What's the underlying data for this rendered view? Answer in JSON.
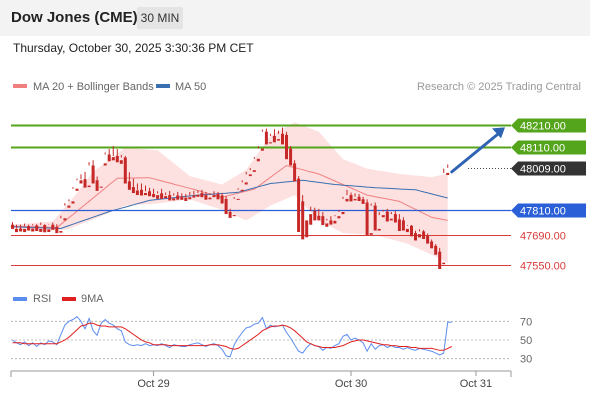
{
  "header": {
    "title": "Dow Jones (CME)",
    "timeframe": "30 MIN"
  },
  "timestamp": "Thursday, October 30, 2025 3:30:36 PM CET",
  "legend": {
    "ma20": "MA 20 + Bollinger Bands",
    "ma50": "MA 50"
  },
  "copyright": "Research © 2025 Trading Central",
  "colors": {
    "candle_up": "#2e7d32",
    "candle_down": "#c62828",
    "ma20": "#f08080",
    "ma50": "#3a6fb0",
    "bollinger_fill": "#fde0e0",
    "resistance": "#55a51c",
    "pivot": "#2a5fd8",
    "support": "#d93a3a",
    "rsi": "#5b8def",
    "rsi_ma": "#e02020"
  },
  "chart_data": {
    "type": "candlestick",
    "ylim": [
      47530,
      48245
    ],
    "x_ticks": [
      "Oct 29",
      "Oct 30",
      "Oct 31"
    ],
    "x_tick_index": [
      35,
      84,
      115
    ],
    "candles": [
      [
        47740,
        47752,
        47725,
        47720
      ],
      [
        47720,
        47740,
        47722,
        47705
      ],
      [
        47722,
        47740,
        47720,
        47708
      ],
      [
        47720,
        47745,
        47733,
        47705
      ],
      [
        47733,
        47740,
        47722,
        47712
      ],
      [
        47722,
        47742,
        47736,
        47708
      ],
      [
        47736,
        47742,
        47720,
        47710
      ],
      [
        47720,
        47750,
        47738,
        47706
      ],
      [
        47738,
        47742,
        47718,
        47704
      ],
      [
        47718,
        47742,
        47740,
        47705
      ],
      [
        47740,
        47750,
        47730,
        47716
      ],
      [
        47730,
        47742,
        47710,
        47700
      ],
      [
        47710,
        47782,
        47770,
        47702
      ],
      [
        47770,
        47842,
        47830,
        47760
      ],
      [
        47830,
        47860,
        47850,
        47820
      ],
      [
        47850,
        47918,
        47910,
        47840
      ],
      [
        47910,
        47958,
        47950,
        47900
      ],
      [
        47950,
        47978,
        47955,
        47935
      ],
      [
        47955,
        47990,
        47925,
        47915
      ],
      [
        47925,
        48036,
        48020,
        47918
      ],
      [
        48020,
        48045,
        47950,
        47935
      ],
      [
        47950,
        47968,
        47920,
        47900
      ],
      [
        47920,
        48030,
        48030,
        47915
      ],
      [
        48030,
        48082,
        48072,
        48020
      ],
      [
        48072,
        48098,
        48060,
        48040
      ],
      [
        48060,
        48112,
        48065,
        48045
      ],
      [
        48065,
        48098,
        48045,
        48035
      ],
      [
        48045,
        48070,
        48058,
        48028
      ],
      [
        48058,
        48065,
        47945,
        47935
      ],
      [
        47945,
        47988,
        47918,
        47905
      ],
      [
        47918,
        47958,
        47902,
        47890
      ],
      [
        47902,
        47935,
        47905,
        47880
      ],
      [
        47905,
        47935,
        47890,
        47878
      ],
      [
        47890,
        47925,
        47898,
        47880
      ],
      [
        47898,
        47915,
        47885,
        47875
      ],
      [
        47885,
        47910,
        47880,
        47870
      ],
      [
        47880,
        47898,
        47888,
        47862
      ],
      [
        47888,
        47910,
        47875,
        47862
      ],
      [
        47875,
        47892,
        47880,
        47865
      ],
      [
        47880,
        47900,
        47865,
        47855
      ],
      [
        47865,
        47888,
        47878,
        47855
      ],
      [
        47878,
        47895,
        47872,
        47858
      ],
      [
        47872,
        47888,
        47868,
        47858
      ],
      [
        47868,
        47885,
        47870,
        47852
      ],
      [
        47870,
        47895,
        47878,
        47860
      ],
      [
        47878,
        47900,
        47882,
        47868
      ],
      [
        47882,
        47902,
        47890,
        47872
      ],
      [
        47890,
        47905,
        47880,
        47870
      ],
      [
        47880,
        47895,
        47868,
        47858
      ],
      [
        47868,
        47888,
        47880,
        47860
      ],
      [
        47880,
        47898,
        47885,
        47870
      ],
      [
        47885,
        47895,
        47878,
        47860
      ],
      [
        47878,
        47890,
        47862,
        47840
      ],
      [
        47862,
        47875,
        47800,
        47790
      ],
      [
        47800,
        47815,
        47785,
        47772
      ],
      [
        47785,
        47870,
        47862,
        47780
      ],
      [
        47862,
        47912,
        47905,
        47858
      ],
      [
        47905,
        47950,
        47940,
        47898
      ],
      [
        47940,
        47990,
        47978,
        47930
      ],
      [
        47978,
        48008,
        47998,
        47970
      ],
      [
        47998,
        48060,
        48052,
        47990
      ],
      [
        48052,
        48112,
        48100,
        48040
      ],
      [
        48100,
        48190,
        48180,
        48090
      ],
      [
        48180,
        48195,
        48130,
        48120
      ],
      [
        48130,
        48170,
        48160,
        48125
      ],
      [
        48160,
        48192,
        48145,
        48130
      ],
      [
        48145,
        48185,
        48170,
        48138
      ],
      [
        48170,
        48200,
        48165,
        48120
      ],
      [
        48165,
        48180,
        48100,
        48050
      ],
      [
        48100,
        48112,
        48030,
        48020
      ],
      [
        48030,
        48045,
        47958,
        47945
      ],
      [
        47958,
        47970,
        47850,
        47705
      ],
      [
        47850,
        47880,
        47760,
        47670
      ],
      [
        47760,
        47790,
        47790,
        47680
      ],
      [
        47790,
        47825,
        47805,
        47740
      ],
      [
        47805,
        47820,
        47782,
        47760
      ],
      [
        47782,
        47815,
        47780,
        47760
      ],
      [
        47780,
        47800,
        47746,
        47738
      ],
      [
        47746,
        47768,
        47760,
        47730
      ],
      [
        47760,
        47780,
        47758,
        47740
      ],
      [
        47758,
        47785,
        47780,
        47745
      ],
      [
        47780,
        47810,
        47800,
        47770
      ],
      [
        47800,
        47872,
        47862,
        47790
      ],
      [
        47862,
        47905,
        47880,
        47850
      ],
      [
        47880,
        47892,
        47862,
        47850
      ],
      [
        47862,
        47888,
        47872,
        47855
      ],
      [
        47872,
        47885,
        47860,
        47852
      ],
      [
        47860,
        47872,
        47845,
        47838
      ],
      [
        47845,
        47860,
        47700,
        47690
      ],
      [
        47700,
        47840,
        47830,
        47692
      ],
      [
        47830,
        47845,
        47720,
        47712
      ],
      [
        47720,
        47800,
        47785,
        47712
      ],
      [
        47785,
        47810,
        47802,
        47775
      ],
      [
        47802,
        47815,
        47768,
        47755
      ],
      [
        47768,
        47800,
        47790,
        47760
      ],
      [
        47790,
        47805,
        47765,
        47750
      ],
      [
        47765,
        47790,
        47760,
        47710
      ],
      [
        47760,
        47775,
        47720,
        47712
      ],
      [
        47720,
        47738,
        47735,
        47705
      ],
      [
        47735,
        47738,
        47700,
        47685
      ],
      [
        47700,
        47712,
        47695,
        47665
      ],
      [
        47695,
        47718,
        47708,
        47680
      ],
      [
        47708,
        47715,
        47688,
        47672
      ],
      [
        47688,
        47698,
        47660,
        47650
      ],
      [
        47660,
        47670,
        47640,
        47628
      ],
      [
        47640,
        47648,
        47612,
        47598
      ],
      [
        47612,
        47630,
        47560,
        47530
      ],
      [
        47560,
        48005,
        47985,
        47553
      ],
      [
        47985,
        48025,
        48009,
        47975
      ]
    ],
    "ma20": [
      [
        0,
        47733
      ],
      [
        11,
        47726
      ],
      [
        18,
        47835
      ],
      [
        26,
        47960
      ],
      [
        34,
        47962
      ],
      [
        44,
        47912
      ],
      [
        52,
        47870
      ],
      [
        60,
        47908
      ],
      [
        68,
        48020
      ],
      [
        76,
        47980
      ],
      [
        82,
        47930
      ],
      [
        88,
        47880
      ],
      [
        96,
        47850
      ],
      [
        104,
        47775
      ],
      [
        108,
        47760
      ],
      [
        113,
        47775
      ]
    ],
    "ma50": [
      [
        0,
        47730
      ],
      [
        12,
        47722
      ],
      [
        24,
        47802
      ],
      [
        34,
        47855
      ],
      [
        46,
        47880
      ],
      [
        56,
        47893
      ],
      [
        64,
        47935
      ],
      [
        72,
        47950
      ],
      [
        80,
        47930
      ],
      [
        90,
        47915
      ],
      [
        100,
        47905
      ],
      [
        108,
        47866
      ],
      [
        113,
        47860
      ]
    ],
    "bb_upper": [
      [
        0,
        47740
      ],
      [
        10,
        47755
      ],
      [
        16,
        47890
      ],
      [
        20,
        47990
      ],
      [
        28,
        48105
      ],
      [
        36,
        48092
      ],
      [
        44,
        47970
      ],
      [
        52,
        47930
      ],
      [
        58,
        48000
      ],
      [
        64,
        48160
      ],
      [
        70,
        48225
      ],
      [
        76,
        48180
      ],
      [
        82,
        48050
      ],
      [
        88,
        48005
      ],
      [
        96,
        47980
      ],
      [
        104,
        47965
      ],
      [
        110,
        47990
      ],
      [
        113,
        48010
      ]
    ],
    "bb_lower": [
      [
        0,
        47715
      ],
      [
        8,
        47706
      ],
      [
        14,
        47720
      ],
      [
        22,
        47780
      ],
      [
        28,
        47830
      ],
      [
        36,
        47840
      ],
      [
        44,
        47860
      ],
      [
        52,
        47810
      ],
      [
        58,
        47760
      ],
      [
        64,
        47830
      ],
      [
        70,
        47880
      ],
      [
        76,
        47760
      ],
      [
        82,
        47700
      ],
      [
        90,
        47690
      ],
      [
        98,
        47650
      ],
      [
        106,
        47580
      ],
      [
        110,
        47535
      ],
      [
        113,
        47540
      ]
    ],
    "levels": [
      {
        "value": "48210.00",
        "kind": "resistance"
      },
      {
        "value": "48110.00",
        "kind": "resistance"
      },
      {
        "value": "48009.00",
        "kind": "last"
      },
      {
        "value": "47810.00",
        "kind": "pivot"
      },
      {
        "value": "47690.00",
        "kind": "support"
      },
      {
        "value": "47550.00",
        "kind": "support"
      }
    ],
    "target_arrow": {
      "from": [
        47990,
        0
      ],
      "to": 48210
    },
    "rsi": {
      "labels": {
        "rsi": "RSI",
        "ma": "9MA"
      },
      "ylim": [
        20,
        80
      ],
      "ticks": [
        70,
        50,
        30
      ],
      "rsi_values": [
        50,
        47,
        45,
        48,
        44,
        47,
        43,
        47,
        45,
        49,
        48,
        45,
        56,
        66,
        70,
        72,
        75,
        70,
        62,
        73,
        60,
        55,
        68,
        72,
        68,
        66,
        62,
        60,
        48,
        45,
        44,
        45,
        44,
        46,
        44,
        45,
        44,
        46,
        44,
        42,
        45,
        44,
        43,
        43,
        45,
        46,
        47,
        45,
        43,
        45,
        46,
        44,
        40,
        33,
        32,
        45,
        52,
        58,
        63,
        64,
        67,
        68,
        74,
        62,
        66,
        64,
        65,
        66,
        58,
        52,
        45,
        38,
        36,
        42,
        46,
        44,
        43,
        39,
        42,
        41,
        44,
        46,
        54,
        56,
        50,
        52,
        50,
        47,
        38,
        46,
        40,
        44,
        45,
        42,
        44,
        42,
        42,
        40,
        42,
        40,
        39,
        41,
        40,
        39,
        38,
        36,
        34,
        36,
        69,
        69
      ],
      "ma_values": [
        47,
        47,
        47,
        46,
        46,
        46,
        46,
        46,
        46,
        46,
        46,
        46,
        48,
        50,
        53,
        57,
        61,
        65,
        66,
        68,
        68,
        66,
        65,
        65,
        64,
        64,
        64,
        64,
        62,
        59,
        56,
        53,
        50,
        48,
        47,
        45,
        45,
        45,
        45,
        44,
        44,
        44,
        44,
        44,
        44,
        44,
        44,
        44,
        44,
        45,
        45,
        45,
        44,
        43,
        41,
        40,
        41,
        44,
        47,
        50,
        53,
        56,
        60,
        62,
        64,
        65,
        65,
        66,
        65,
        63,
        60,
        56,
        52,
        48,
        46,
        44,
        43,
        42,
        42,
        42,
        42,
        43,
        44,
        46,
        48,
        49,
        50,
        50,
        49,
        48,
        47,
        46,
        45,
        45,
        44,
        44,
        43,
        43,
        43,
        42,
        42,
        41,
        41,
        41,
        41,
        40,
        39,
        39,
        41,
        43
      ]
    }
  }
}
